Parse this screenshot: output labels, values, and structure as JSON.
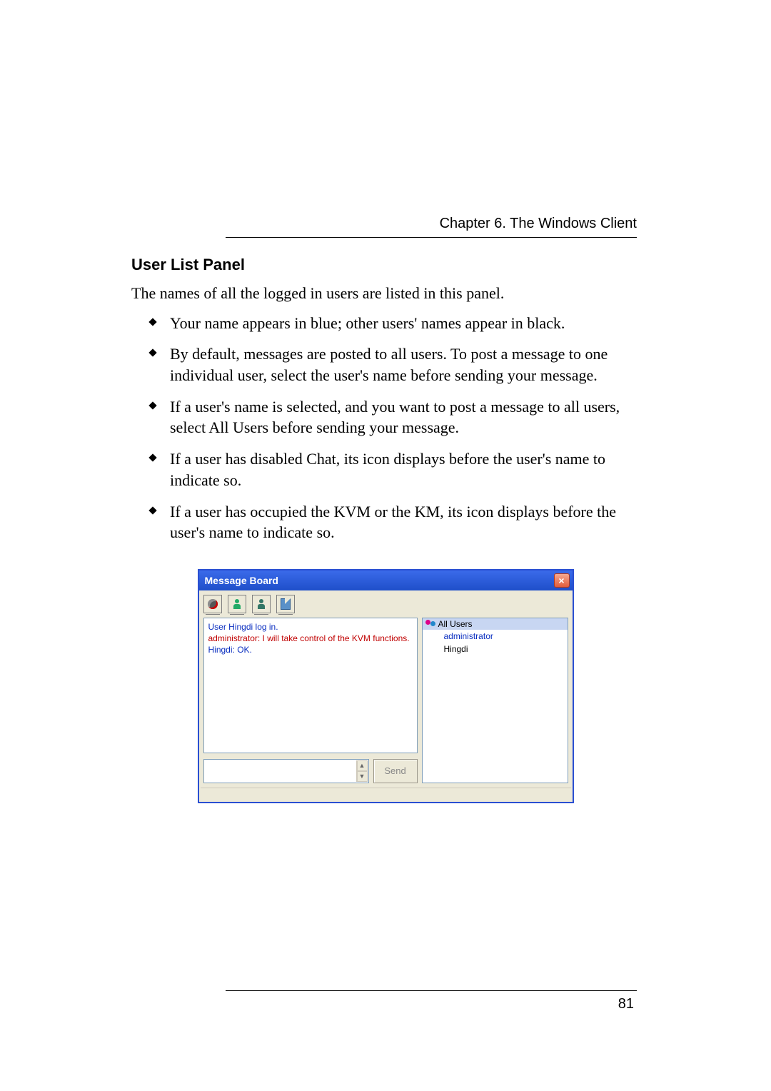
{
  "header": {
    "chapter": "Chapter 6. The Windows Client"
  },
  "section": {
    "title": "User List Panel"
  },
  "intro": "The names of all the logged in users are listed in this panel.",
  "bullets": [
    "Your name appears in blue; other users' names appear in black.",
    "By default, messages are posted to all users. To post a message to one individual user, select the user's name before sending your message.",
    "If a user's name is selected, and you want to post a message to all users, select All Users before sending your message.",
    "If a user has disabled Chat, its icon displays before the user's name to indicate so.",
    "If a user has occupied the KVM or the KM, its icon displays before the user's name to indicate so."
  ],
  "screenshot": {
    "window_title": "Message Board",
    "close_glyph": "×",
    "titlebar_gradient": [
      "#3b6bea",
      "#1f4fc9"
    ],
    "frame_color": "#2a4fd2",
    "panel_bg": "#ece9d8",
    "field_border": "#7f9db9",
    "log_entries": [
      {
        "text": "User Hingdi log in.",
        "color_class": "log-blue"
      },
      {
        "text": "administrator: I will take control of the KVM functions.",
        "color_class": "log-red"
      },
      {
        "text": "Hingdi: OK.",
        "color_class": "log-blue"
      }
    ],
    "send_label": "Send",
    "all_users_label": "All Users",
    "all_users_bg": "#c8d6f2",
    "users": [
      {
        "name": "administrator",
        "blue": true
      },
      {
        "name": "Hingdi",
        "blue": false
      }
    ],
    "scroll_up": "▲",
    "scroll_down": "▼"
  },
  "page_number": "81"
}
